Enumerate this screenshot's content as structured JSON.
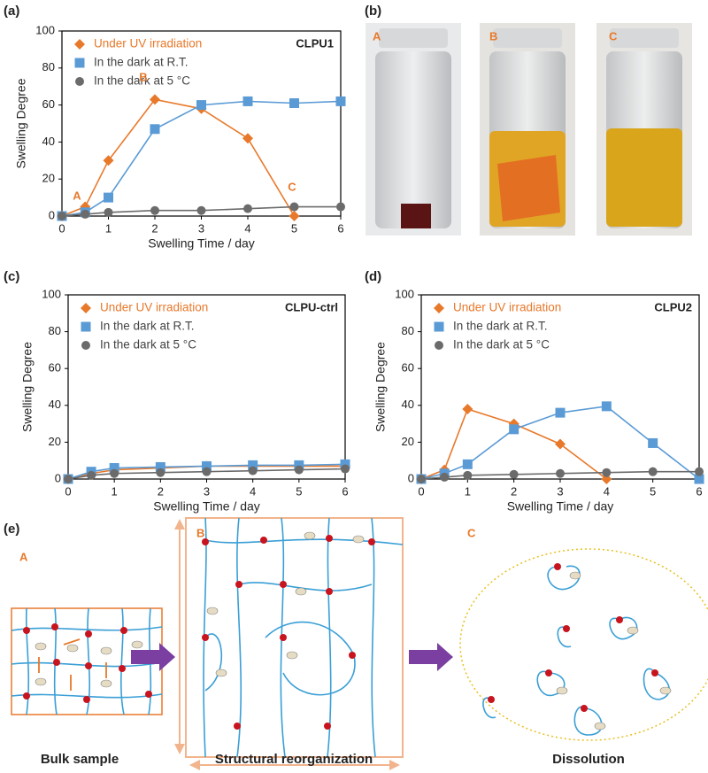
{
  "panel_labels": [
    "(a)",
    "(b)",
    "(c)",
    "(d)",
    "(e)"
  ],
  "photos": {
    "labels": [
      "A",
      "B",
      "C"
    ]
  },
  "diagram": {
    "stage_labels": [
      "A",
      "B",
      "C"
    ],
    "captions": [
      "Bulk sample",
      "Structural reorganization",
      "Dissolution"
    ]
  },
  "chart_data": [
    {
      "type": "line",
      "annotation": "CLPU1",
      "point_labels": [
        "A",
        "B",
        "C"
      ],
      "xlabel": "Swelling Time / day",
      "ylabel": "Swelling Degree",
      "xlim": [
        0,
        6
      ],
      "xticks": [
        0,
        1,
        2,
        3,
        4,
        5,
        6
      ],
      "ylim": [
        0,
        100
      ],
      "yticks": [
        0,
        20,
        40,
        60,
        80,
        100
      ],
      "series": [
        {
          "name": "Under UV irradiation",
          "color": "#e8792b",
          "marker": "diamond",
          "x": [
            0,
            0.5,
            1,
            2,
            3,
            4,
            5
          ],
          "values": [
            0,
            5,
            30,
            63,
            58,
            42,
            0
          ]
        },
        {
          "name": "In the dark at R.T.",
          "color": "#5b9bd5",
          "marker": "square",
          "x": [
            0,
            0.5,
            1,
            2,
            3,
            4,
            5,
            6
          ],
          "values": [
            0,
            2,
            10,
            47,
            60,
            62,
            61,
            62
          ]
        },
        {
          "name": "In the dark at 5 °C",
          "color": "#6b6b6b",
          "marker": "circle",
          "x": [
            0,
            0.5,
            1,
            2,
            3,
            4,
            5,
            6
          ],
          "values": [
            0,
            1,
            2,
            3,
            3,
            4,
            5,
            5
          ]
        }
      ]
    },
    {
      "type": "line",
      "annotation": "CLPU-ctrl",
      "xlabel": "Swelling Time / day",
      "ylabel": "Swelling Degree",
      "xlim": [
        0,
        6
      ],
      "xticks": [
        0,
        1,
        2,
        3,
        4,
        5,
        6
      ],
      "ylim": [
        0,
        100
      ],
      "yticks": [
        0,
        20,
        40,
        60,
        80,
        100
      ],
      "series": [
        {
          "name": "Under UV irradiation",
          "color": "#e8792b",
          "marker": "diamond",
          "x": [
            0,
            0.5,
            1,
            2,
            3,
            4,
            5,
            6
          ],
          "values": [
            0,
            3,
            5,
            6,
            7,
            7,
            7,
            7
          ]
        },
        {
          "name": "In the dark at R.T.",
          "color": "#5b9bd5",
          "marker": "square",
          "x": [
            0,
            0.5,
            1,
            2,
            3,
            4,
            5,
            6
          ],
          "values": [
            0,
            4,
            6,
            6.5,
            7,
            7.5,
            7.5,
            8
          ]
        },
        {
          "name": "In the dark at 5 °C",
          "color": "#6b6b6b",
          "marker": "circle",
          "x": [
            0,
            0.5,
            1,
            2,
            3,
            4,
            5,
            6
          ],
          "values": [
            0,
            2,
            3,
            3.5,
            4,
            4.5,
            5,
            5.5
          ]
        }
      ]
    },
    {
      "type": "line",
      "annotation": "CLPU2",
      "xlabel": "Swelling Time / day",
      "ylabel": "Swelling Degree",
      "xlim": [
        0,
        6
      ],
      "xticks": [
        0,
        1,
        2,
        3,
        4,
        5,
        6
      ],
      "ylim": [
        0,
        100
      ],
      "yticks": [
        0,
        20,
        40,
        60,
        80,
        100
      ],
      "series": [
        {
          "name": "Under UV irradiation",
          "color": "#e8792b",
          "marker": "diamond",
          "x": [
            0,
            0.5,
            1,
            2,
            3,
            4
          ],
          "values": [
            0,
            5,
            38,
            30,
            19,
            0
          ]
        },
        {
          "name": "In the dark at R.T.",
          "color": "#5b9bd5",
          "marker": "square",
          "x": [
            0,
            0.5,
            1,
            2,
            3,
            4,
            5,
            6
          ],
          "values": [
            0,
            3,
            8,
            27,
            36,
            39.5,
            19.5,
            0
          ]
        },
        {
          "name": "In the dark at 5 °C",
          "color": "#6b6b6b",
          "marker": "circle",
          "x": [
            0,
            0.5,
            1,
            2,
            3,
            4,
            5,
            6
          ],
          "values": [
            0,
            1,
            2,
            2.5,
            3,
            3.5,
            4,
            4
          ]
        }
      ]
    }
  ]
}
